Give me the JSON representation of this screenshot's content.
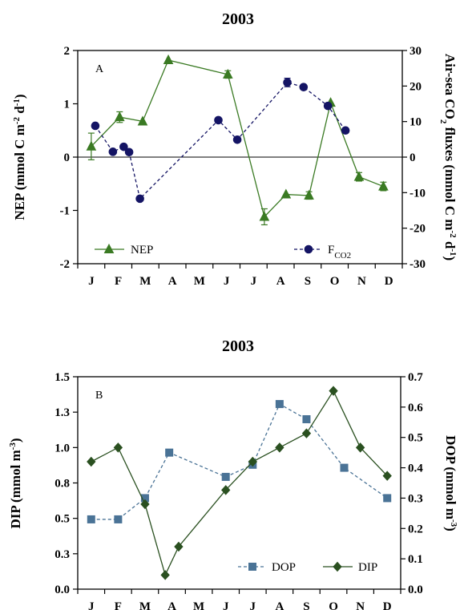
{
  "chart_data": [
    {
      "type": "line",
      "title": "2003",
      "panel_label": "A",
      "ylabel": "NEP (mmol C m-2 d-1)",
      "y2label": "Air-sea CO2 fluxes (mmol C m-2 d-1)",
      "x_ticks": [
        "J",
        "F",
        "M",
        "A",
        "M",
        "J",
        "J",
        "A",
        "S",
        "O",
        "N",
        "D"
      ],
      "ylim": [
        -2,
        2
      ],
      "y_ticks": [
        "-2",
        "-1",
        "0",
        "1",
        "2"
      ],
      "y2lim": [
        -30,
        30
      ],
      "y2_ticks": [
        "-30",
        "-20",
        "-10",
        "0",
        "10",
        "20",
        "30"
      ],
      "grid": false,
      "zero_line": true,
      "legend_position": "bottom",
      "series": [
        {
          "name": "NEP",
          "axis": "left",
          "color": "#3a7a23",
          "marker": "triangle",
          "line": "solid",
          "x": [
            0.5,
            1.55,
            2.4,
            3.35,
            5.55,
            6.9,
            7.7,
            8.55,
            9.35,
            10.4,
            11.3
          ],
          "y": [
            0.2,
            0.75,
            0.67,
            1.82,
            1.55,
            -1.12,
            -0.7,
            -0.72,
            1.02,
            -0.37,
            -0.55
          ],
          "err": [
            0.25,
            0.1,
            0,
            0,
            0.07,
            0.15,
            0,
            0.07,
            0,
            0.08,
            0.08
          ]
        },
        {
          "name": "FCO2",
          "axis": "right",
          "color": "#141464",
          "marker": "circle",
          "line": "dashed",
          "x": [
            0.65,
            1.3,
            1.7,
            1.9,
            2.3,
            5.2,
            5.9,
            7.75,
            8.35,
            9.25,
            9.9
          ],
          "y": [
            8.8,
            1.5,
            2.9,
            1.4,
            -11.7,
            10.4,
            4.9,
            21,
            19.7,
            14.4,
            7.5
          ],
          "err": [
            0,
            0,
            0,
            0,
            0,
            0,
            0,
            1.2,
            0,
            0,
            0
          ]
        }
      ]
    },
    {
      "type": "line",
      "title": "2003",
      "panel_label": "B",
      "ylabel": "DIP (mmol m-3)",
      "y2label": "DOP (mmol m-3)",
      "x_ticks": [
        "J",
        "F",
        "M",
        "A",
        "M",
        "J",
        "J",
        "A",
        "S",
        "O",
        "N",
        "D"
      ],
      "ylim": [
        0,
        1.5
      ],
      "y_ticks": [
        "0.0",
        "0.3",
        "0.5",
        "0.8",
        "1.0",
        "1.3",
        "1.5"
      ],
      "y2lim": [
        0,
        0.7
      ],
      "y2_ticks": [
        "0.0",
        "0.1",
        "0.2",
        "0.3",
        "0.4",
        "0.5",
        "0.6",
        "0.7"
      ],
      "grid": false,
      "legend_position": "bottom-right",
      "series": [
        {
          "name": "DOP",
          "axis": "right",
          "color": "#4a7396",
          "marker": "square",
          "line": "dashed",
          "x": [
            0.5,
            1.5,
            2.5,
            3.4,
            5.5,
            6.5,
            7.5,
            8.5,
            9.9,
            11.5
          ],
          "y": [
            0.23,
            0.23,
            0.3,
            0.45,
            0.37,
            0.41,
            0.61,
            0.56,
            0.4,
            0.3
          ]
        },
        {
          "name": "DIP",
          "axis": "left",
          "color": "#2a5020",
          "marker": "diamond",
          "line": "solid",
          "x": [
            0.5,
            1.5,
            2.5,
            3.25,
            3.75,
            5.5,
            6.5,
            7.5,
            8.5,
            9.5,
            10.5,
            11.5
          ],
          "y": [
            0.9,
            1.0,
            0.6,
            0.1,
            0.3,
            0.7,
            0.9,
            1.0,
            1.1,
            1.4,
            1.0,
            0.8
          ]
        }
      ]
    }
  ]
}
